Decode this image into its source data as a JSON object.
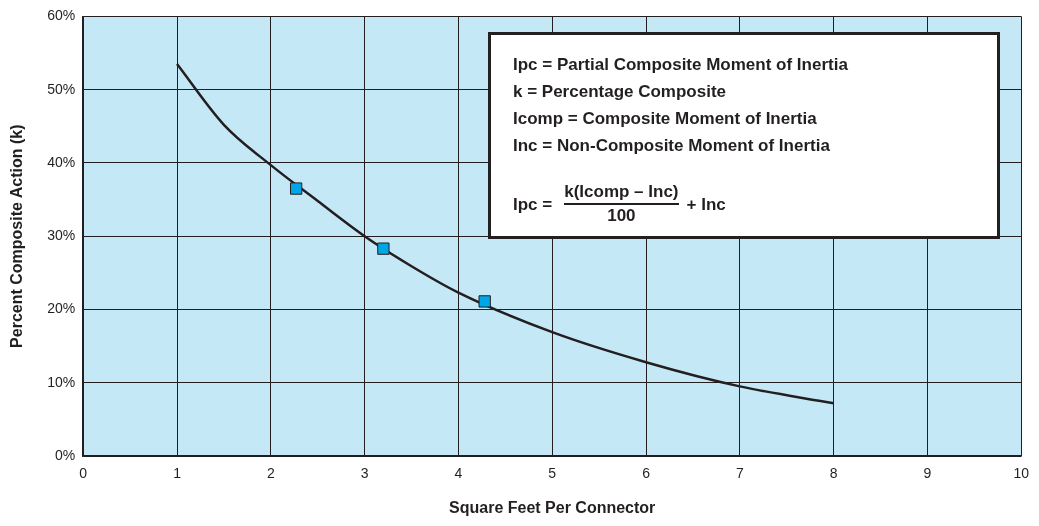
{
  "chart_data": {
    "type": "line",
    "xlabel": "Square Feet Per Connector",
    "ylabel": "Percent Composite Action (k)",
    "xlim": [
      0,
      10
    ],
    "xticks": [
      0,
      1,
      2,
      3,
      4,
      5,
      6,
      7,
      8,
      9,
      10
    ],
    "ylim": [
      0,
      60
    ],
    "yticks": [
      {
        "value": 0,
        "label": "0%"
      },
      {
        "value": 10,
        "label": "10%"
      },
      {
        "value": 20,
        "label": "20%"
      },
      {
        "value": 30,
        "label": "30%"
      },
      {
        "value": 40,
        "label": "40%"
      },
      {
        "value": 50,
        "label": "50%"
      },
      {
        "value": 60,
        "label": "60%"
      }
    ],
    "grid": true,
    "legend": false,
    "series": [
      {
        "color": "#231f20",
        "marker": "none",
        "x": [
          1,
          1.5,
          2,
          2.5,
          3,
          3.5,
          4,
          5,
          6,
          7,
          8
        ],
        "values": [
          53.5,
          45.2,
          39.7,
          34.8,
          30,
          25.9,
          22.3,
          16.9,
          12.8,
          9.5,
          7.2
        ]
      },
      {
        "type": "scatter",
        "color": "#00a6e6",
        "marker": "square",
        "x": [
          2.27,
          3.2,
          4.28
        ],
        "values": [
          36.5,
          28.3,
          21.1
        ]
      }
    ],
    "annotations": [
      "Ipc = Partial Composite Moment of Inertia",
      "k = Percentage Composite",
      "Icomp = Composite Moment of Inertia",
      "Inc = Non-Composite Moment of Inertia",
      "Ipc =",
      "k(Icomp – Inc)",
      "100",
      "+ Inc"
    ]
  }
}
